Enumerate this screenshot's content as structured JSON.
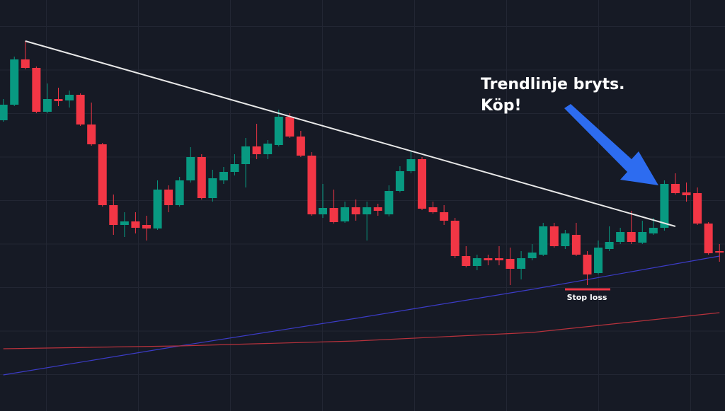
{
  "chart_data": {
    "type": "candlestick",
    "annotation": [
      "Trendlinje bryts.",
      "Köp!"
    ],
    "stop_loss": {
      "label": "Stop loss",
      "value": 172
    },
    "xlim": [
      -0.3,
      65.5
    ],
    "ylim": [
      0,
      581
    ],
    "up_color": "#089981",
    "down_color": "#f23645",
    "open": [
      411,
      433,
      497,
      485,
      423,
      441,
      439,
      447,
      405,
      377,
      291,
      263,
      268,
      263,
      258,
      313,
      291,
      326,
      359,
      301,
      326,
      338,
      349,
      374,
      363,
      376,
      416,
      388,
      361,
      278,
      287,
      268,
      288,
      278,
      288,
      278,
      311,
      339,
      356,
      288,
      281,
      269,
      219,
      205,
      216,
      216,
      215,
      201,
      216,
      221,
      261,
      233,
      249,
      221,
      195,
      229,
      239,
      253,
      238,
      251,
      259,
      321,
      309,
      308,
      265,
      226
    ],
    "high": [
      441,
      501,
      523,
      487,
      463,
      457,
      453,
      449,
      436,
      379,
      306,
      281,
      281,
      276,
      326,
      319,
      331,
      373,
      363,
      341,
      345,
      363,
      386,
      406,
      383,
      426,
      421,
      396,
      366,
      321,
      313,
      296,
      299,
      296,
      293,
      319,
      346,
      368,
      359,
      296,
      291,
      273,
      233,
      221,
      221,
      233,
      231,
      226,
      236,
      266,
      266,
      256,
      266,
      226,
      241,
      261,
      259,
      283,
      269,
      273,
      326,
      336,
      323,
      316,
      267,
      236
    ],
    "low": [
      409,
      431,
      483,
      421,
      421,
      431,
      429,
      403,
      375,
      289,
      249,
      246,
      251,
      241,
      256,
      281,
      289,
      323,
      299,
      296,
      321,
      333,
      316,
      356,
      356,
      374,
      386,
      359,
      276,
      273,
      265,
      266,
      269,
      241,
      276,
      275,
      309,
      336,
      284,
      279,
      263,
      216,
      203,
      199,
      206,
      206,
      178,
      186,
      213,
      219,
      231,
      229,
      219,
      178,
      193,
      226,
      236,
      236,
      236,
      249,
      255,
      306,
      296,
      263,
      221,
      211
    ],
    "close": [
      433,
      497,
      485,
      423,
      441,
      438,
      447,
      405,
      377,
      291,
      263,
      268,
      259,
      258,
      313,
      291,
      326,
      359,
      301,
      329,
      338,
      349,
      374,
      363,
      378,
      416,
      388,
      361,
      278,
      287,
      267,
      288,
      278,
      288,
      283,
      311,
      339,
      356,
      286,
      281,
      269,
      219,
      205,
      216,
      213,
      213,
      201,
      216,
      224,
      261,
      233,
      251,
      221,
      193,
      231,
      239,
      253,
      239,
      253,
      259,
      321,
      308,
      305,
      265,
      223,
      224
    ],
    "trendline": {
      "color": "#e8e8e8",
      "x": [
        2,
        61
      ],
      "values": [
        523,
        261
      ]
    },
    "series": [
      {
        "color": "#3c3cc8",
        "x": [
          0,
          16,
          32,
          48,
          65
        ],
        "values": [
          51,
          92,
          131,
          172,
          219
        ]
      },
      {
        "color": "#b8323c",
        "x": [
          0,
          16,
          32,
          48,
          65
        ],
        "values": [
          88,
          92,
          99,
          111,
          139
        ]
      }
    ]
  }
}
